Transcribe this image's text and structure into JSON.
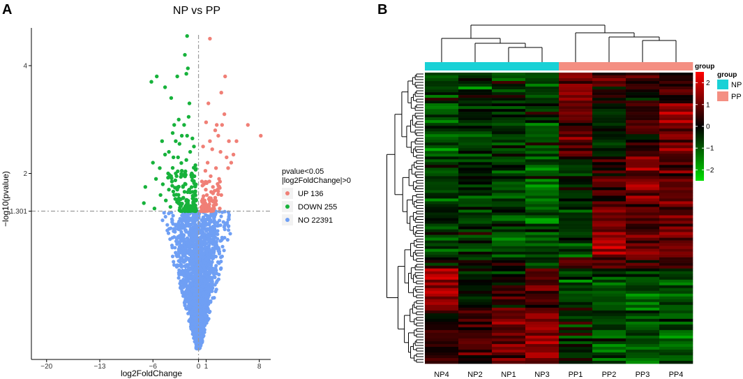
{
  "panels": {
    "a": "A",
    "b": "B"
  },
  "colors": {
    "up": "#f07f76",
    "down": "#17b23b",
    "no": "#6f9ff4",
    "np": "#19d1d6",
    "pp": "#f48f82",
    "hm_low": "#00e000",
    "hm_mid": "#000000",
    "hm_high": "#ff0000",
    "guide": "#9a9a9a"
  },
  "chart_data": [
    {
      "type": "scatter",
      "title": "NP vs PP",
      "xlabel": "log2FoldChange",
      "ylabel": "−log10(pvalue)",
      "xlim": [
        -22,
        9.5
      ],
      "ylim": [
        -1.45,
        4.7
      ],
      "xticks": [
        -20,
        -13,
        -6,
        0,
        1,
        8
      ],
      "xtick_labels": [
        "−20",
        "−13",
        "−6",
        "0",
        "1",
        "8"
      ],
      "yticks": [
        1.301,
        2,
        4
      ],
      "ytick_labels": [
        "1.301",
        "2",
        "4"
      ],
      "threshold_x": 0,
      "threshold_y": 1.301,
      "legend": {
        "title_line1": "pvalue<0.05",
        "title_line2": "|log2FoldChange|>0",
        "entries": [
          {
            "label": "UP 136",
            "color_key": "up",
            "count": 136
          },
          {
            "label": "DOWN 255",
            "color_key": "down",
            "count": 255
          },
          {
            "label": "NO 22391",
            "color_key": "no",
            "count": 22391
          }
        ]
      },
      "highlighted_points": {
        "down": [
          [
            -1.5,
            4.55
          ],
          [
            -1.8,
            4.2
          ],
          [
            -1.4,
            3.95
          ],
          [
            -1.6,
            3.85
          ],
          [
            -2.8,
            3.8
          ],
          [
            -5.5,
            3.8
          ],
          [
            -6.2,
            3.7
          ],
          [
            -4.4,
            3.6
          ],
          [
            -3.6,
            3.4
          ],
          [
            -1.2,
            3.3
          ],
          [
            -1.3,
            3.05
          ],
          [
            -2.6,
            3.0
          ],
          [
            -3.2,
            2.9
          ],
          [
            -1.9,
            2.9
          ],
          [
            -3.4,
            2.75
          ],
          [
            -2.2,
            2.7
          ],
          [
            -1.5,
            2.7
          ],
          [
            -0.8,
            2.65
          ],
          [
            -4.8,
            2.6
          ],
          [
            -3.0,
            2.6
          ],
          [
            -2.5,
            2.55
          ],
          [
            -0.6,
            2.5
          ],
          [
            -3.9,
            2.4
          ],
          [
            -1.1,
            2.4
          ],
          [
            -4.4,
            2.35
          ],
          [
            -3.3,
            2.3
          ],
          [
            -2.7,
            2.3
          ],
          [
            -1.6,
            2.25
          ],
          [
            -6.0,
            2.2
          ],
          [
            -5.1,
            2.1
          ],
          [
            -4.0,
            2.0
          ],
          [
            -3.0,
            2.0
          ],
          [
            -2.2,
            2.05
          ],
          [
            -0.9,
            2.0
          ],
          [
            -5.6,
            1.9
          ],
          [
            -4.7,
            1.8
          ],
          [
            -3.5,
            1.85
          ],
          [
            -1.7,
            1.8
          ],
          [
            -7.0,
            1.75
          ],
          [
            -3.9,
            1.7
          ],
          [
            -2.8,
            1.7
          ],
          [
            -1.1,
            1.65
          ],
          [
            -5.0,
            1.6
          ],
          [
            -3.2,
            1.6
          ],
          [
            -2.0,
            1.55
          ],
          [
            -0.7,
            1.55
          ],
          [
            -7.2,
            1.45
          ],
          [
            -4.3,
            1.5
          ],
          [
            -2.5,
            1.45
          ],
          [
            -1.4,
            1.45
          ],
          [
            -0.5,
            1.4
          ],
          [
            -5.8,
            1.35
          ],
          [
            -3.7,
            1.38
          ],
          [
            -0.9,
            1.33
          ]
        ],
        "up": [
          [
            1.5,
            4.5
          ],
          [
            3.5,
            3.8
          ],
          [
            3.0,
            3.5
          ],
          [
            1.3,
            3.3
          ],
          [
            3.4,
            3.1
          ],
          [
            1.0,
            2.95
          ],
          [
            2.4,
            2.9
          ],
          [
            3.1,
            2.9
          ],
          [
            6.5,
            2.9
          ],
          [
            2.2,
            2.8
          ],
          [
            1.5,
            2.6
          ],
          [
            2.6,
            2.7
          ],
          [
            8.2,
            2.7
          ],
          [
            4.0,
            2.6
          ],
          [
            5.0,
            2.6
          ],
          [
            0.6,
            2.5
          ],
          [
            1.8,
            2.45
          ],
          [
            2.9,
            2.4
          ],
          [
            3.7,
            2.3
          ],
          [
            4.3,
            2.2
          ],
          [
            4.6,
            2.35
          ],
          [
            1.2,
            2.2
          ],
          [
            2.3,
            2.1
          ],
          [
            3.9,
            2.1
          ],
          [
            0.9,
            2.05
          ],
          [
            1.6,
            1.95
          ],
          [
            2.7,
            1.9
          ],
          [
            0.7,
            1.8
          ],
          [
            1.9,
            1.75
          ],
          [
            2.5,
            1.7
          ],
          [
            1.1,
            1.6
          ],
          [
            3.0,
            1.6
          ],
          [
            0.8,
            1.5
          ],
          [
            1.7,
            1.5
          ],
          [
            2.2,
            1.45
          ],
          [
            0.5,
            1.4
          ],
          [
            1.3,
            1.38
          ],
          [
            2.8,
            1.35
          ],
          [
            0.9,
            1.33
          ]
        ]
      }
    },
    {
      "type": "heatmap",
      "columns": [
        "NP4",
        "NP2",
        "NP1",
        "NP3",
        "PP1",
        "PP2",
        "PP3",
        "PP4"
      ],
      "column_groups": [
        "NP",
        "NP",
        "NP",
        "NP",
        "PP",
        "PP",
        "PP",
        "PP"
      ],
      "group_legend": {
        "title": "group",
        "entries": [
          {
            "label": "NP",
            "color_key": "np"
          },
          {
            "label": "PP",
            "color_key": "pp"
          }
        ]
      },
      "color_scale": {
        "title": "group",
        "min": -2.5,
        "max": 2.5,
        "ticks": [
          2,
          1,
          0,
          -1,
          -2
        ],
        "tick_labels": [
          "2",
          "1",
          "0",
          "−1",
          "−2"
        ]
      },
      "row_count": 104
    }
  ]
}
